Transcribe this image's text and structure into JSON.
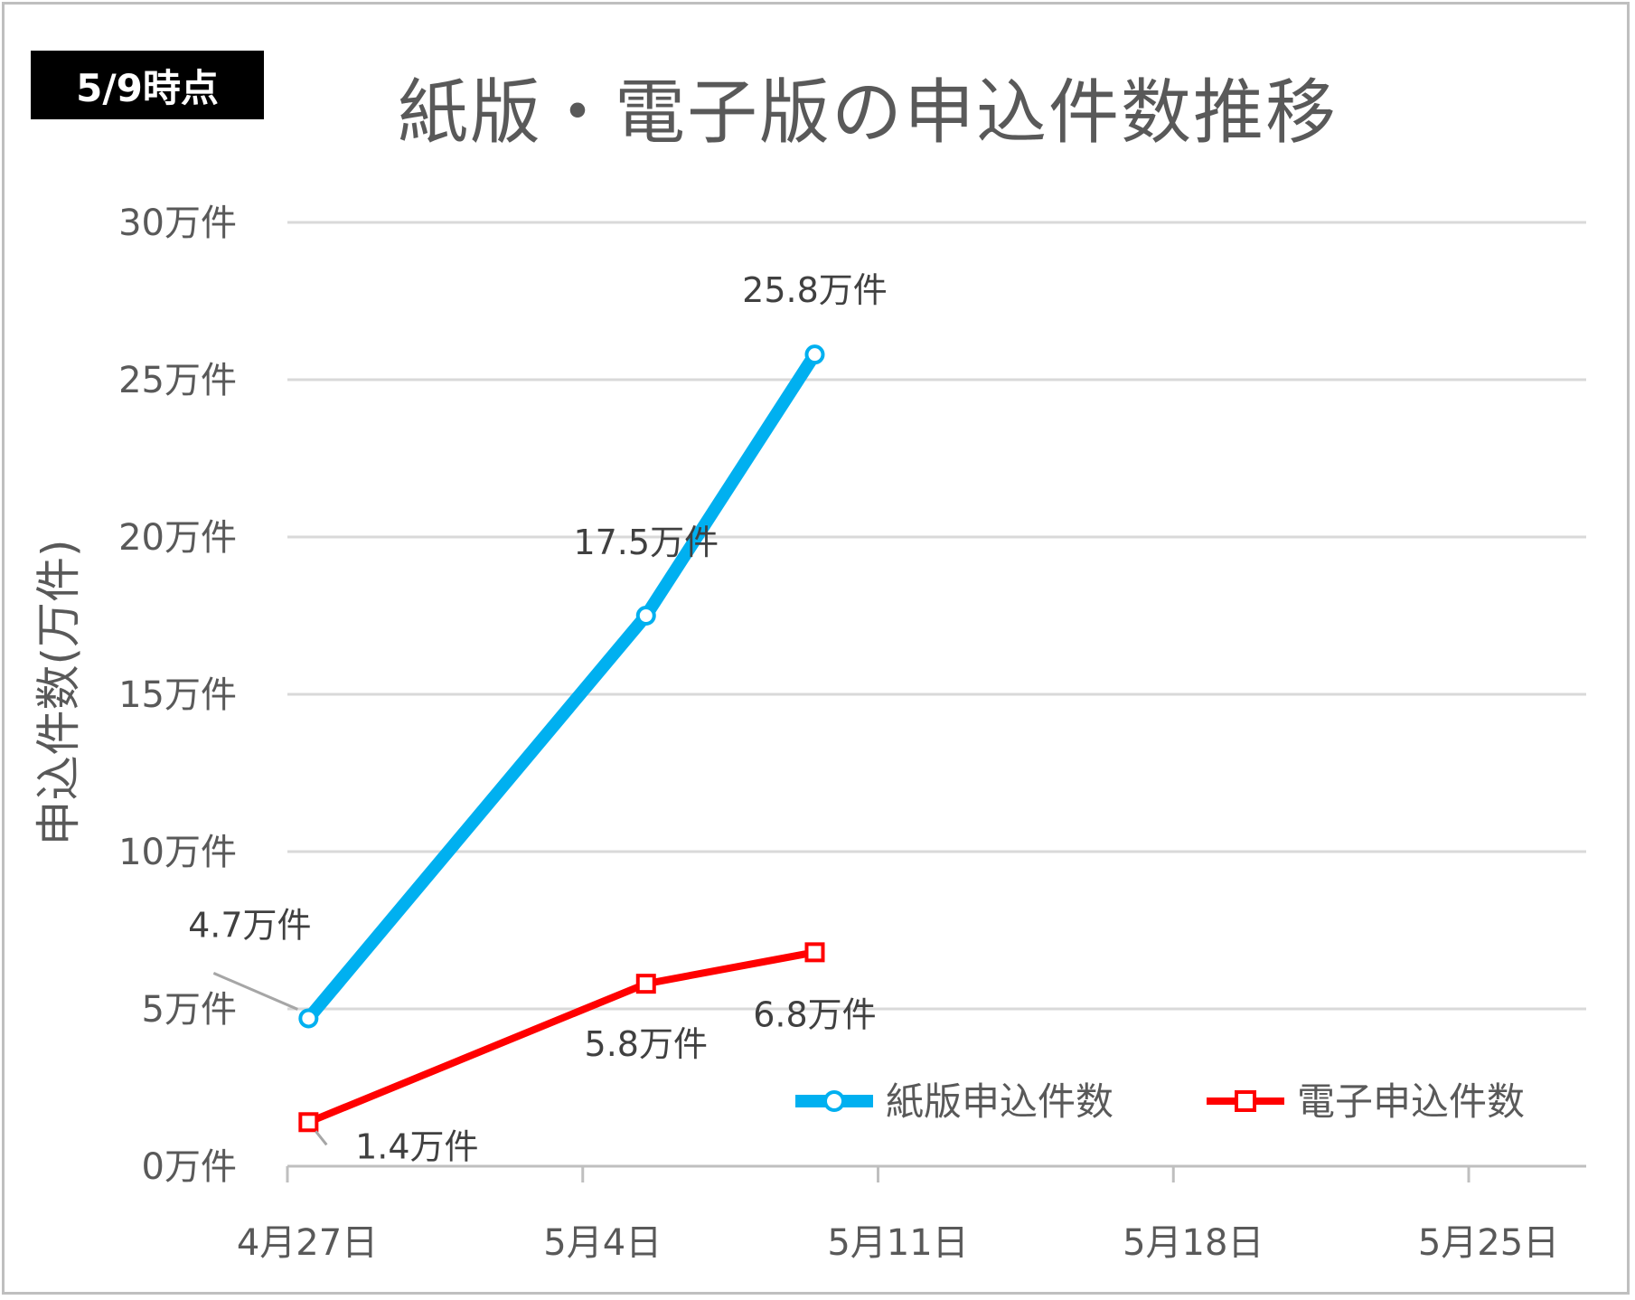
{
  "badge": "5/9時点",
  "chart_data": {
    "type": "line",
    "title": "紙版・電子版の申込件数推移",
    "ylabel": "申込件数(万件)",
    "xlabel": "",
    "ylim": [
      0,
      30
    ],
    "y_ticks": [
      "0万件",
      "5万件",
      "10万件",
      "15万件",
      "20万件",
      "25万件",
      "30万件"
    ],
    "x_ticks": [
      "4月27日",
      "5月4日",
      "5月11日",
      "5月18日",
      "5月25日"
    ],
    "x_tick_days": [
      0,
      7,
      14,
      21,
      28
    ],
    "grid": true,
    "legend_position": "bottom-right",
    "series": [
      {
        "name": "紙版申込件数",
        "color": "#00b0f0",
        "marker": "circle",
        "points": [
          {
            "day": 0.5,
            "value": 4.7,
            "label": "4.7万件"
          },
          {
            "day": 8.5,
            "value": 17.5,
            "label": "17.5万件"
          },
          {
            "day": 12.5,
            "value": 25.8,
            "label": "25.8万件"
          }
        ]
      },
      {
        "name": "電子申込件数",
        "color": "#ff0000",
        "marker": "square",
        "points": [
          {
            "day": 0.5,
            "value": 1.4,
            "label": "1.4万件"
          },
          {
            "day": 8.5,
            "value": 5.8,
            "label": "5.8万件"
          },
          {
            "day": 12.5,
            "value": 6.8,
            "label": "6.8万件"
          }
        ]
      }
    ]
  }
}
